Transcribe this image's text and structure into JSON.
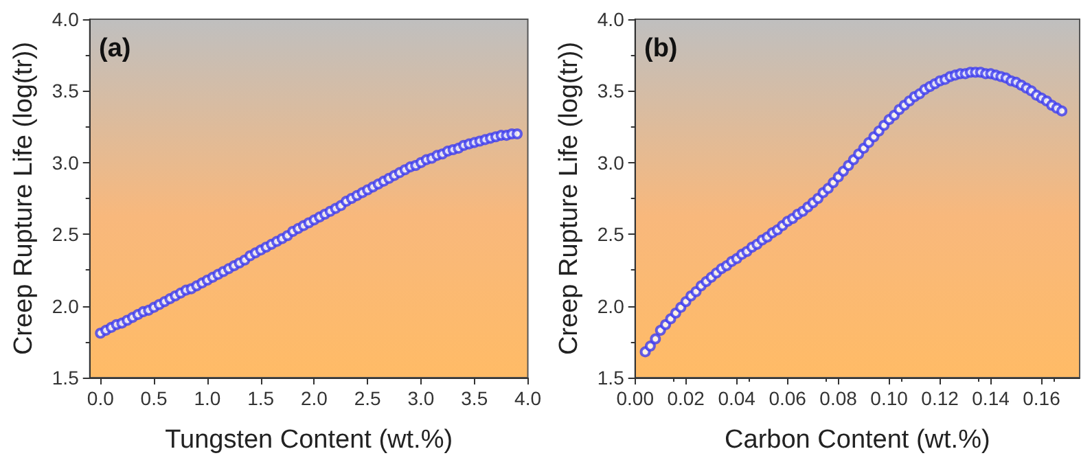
{
  "chart_data": [
    {
      "type": "scatter",
      "annotations": [
        "(a)"
      ],
      "xlabel": "Tungsten Content (wt.%)",
      "ylabel": "Creep Rupture Life (log(tr))",
      "marker": "circle",
      "grid": false,
      "xlim": [
        -0.1,
        4.0
      ],
      "xticks": [
        {
          "value": 0,
          "label": "0.0"
        },
        0.5,
        {
          "value": 1,
          "label": "1.0"
        },
        1.5,
        {
          "value": 2,
          "label": "2.0"
        },
        2.5,
        {
          "value": 3,
          "label": "3.0"
        },
        3.5,
        {
          "value": 4,
          "label": "4.0"
        }
      ],
      "ylim": [
        1.5,
        4.0
      ],
      "yticks": [
        1.5,
        {
          "value": 2,
          "label": "2.0"
        },
        2.5,
        {
          "value": 3,
          "label": "3.0"
        },
        3.5,
        {
          "value": 4,
          "label": "4.0"
        }
      ],
      "x": [
        0,
        0.05,
        0.1,
        0.15,
        0.2,
        0.25,
        0.3,
        0.35,
        0.4,
        0.45,
        0.5,
        0.55,
        0.6,
        0.65,
        0.7,
        0.75,
        0.8,
        0.85,
        0.9,
        0.95,
        1.0,
        1.05,
        1.1,
        1.15,
        1.2,
        1.25,
        1.3,
        1.35,
        1.4,
        1.45,
        1.5,
        1.55,
        1.6,
        1.65,
        1.7,
        1.75,
        1.8,
        1.85,
        1.9,
        1.95,
        2.0,
        2.05,
        2.1,
        2.15,
        2.2,
        2.25,
        2.3,
        2.35,
        2.4,
        2.45,
        2.5,
        2.55,
        2.6,
        2.65,
        2.7,
        2.75,
        2.8,
        2.85,
        2.9,
        2.95,
        3.0,
        3.05,
        3.1,
        3.15,
        3.2,
        3.25,
        3.3,
        3.35,
        3.4,
        3.45,
        3.5,
        3.55,
        3.6,
        3.65,
        3.7,
        3.75,
        3.8,
        3.85,
        3.9
      ],
      "series": [
        {
          "color": "#3c3cf0",
          "values": [
            1.81,
            1.83,
            1.85,
            1.87,
            1.88,
            1.9,
            1.92,
            1.94,
            1.96,
            1.97,
            1.99,
            2.01,
            2.03,
            2.05,
            2.07,
            2.09,
            2.11,
            2.12,
            2.14,
            2.16,
            2.18,
            2.2,
            2.22,
            2.24,
            2.26,
            2.28,
            2.3,
            2.32,
            2.35,
            2.37,
            2.39,
            2.41,
            2.43,
            2.45,
            2.47,
            2.49,
            2.52,
            2.54,
            2.56,
            2.58,
            2.6,
            2.62,
            2.64,
            2.66,
            2.68,
            2.7,
            2.73,
            2.75,
            2.77,
            2.79,
            2.81,
            2.83,
            2.85,
            2.87,
            2.89,
            2.91,
            2.93,
            2.95,
            2.97,
            2.98,
            3.0,
            3.02,
            3.03,
            3.05,
            3.06,
            3.08,
            3.09,
            3.1,
            3.12,
            3.13,
            3.14,
            3.15,
            3.16,
            3.17,
            3.18,
            3.19,
            3.19,
            3.2,
            3.2
          ]
        }
      ]
    },
    {
      "type": "scatter",
      "annotations": [
        "(b)"
      ],
      "xlabel": "Carbon Content (wt.%)",
      "ylabel": "Creep Rupture Life (log(tr))",
      "marker": "circle",
      "grid": false,
      "xlim": [
        0,
        0.175
      ],
      "xticks": [
        {
          "value": 0,
          "label": "0.00"
        },
        {
          "value": 0.02,
          "label": "0.02"
        },
        {
          "value": 0.04,
          "label": "0.04"
        },
        {
          "value": 0.06,
          "label": "0.06"
        },
        {
          "value": 0.08,
          "label": "0.08"
        },
        {
          "value": 0.1,
          "label": "0.10"
        },
        {
          "value": 0.12,
          "label": "0.12"
        },
        {
          "value": 0.14,
          "label": "0.14"
        },
        {
          "value": 0.16,
          "label": "0.16"
        }
      ],
      "ylim": [
        1.5,
        4.0
      ],
      "yticks": [
        1.5,
        {
          "value": 2,
          "label": "2.0"
        },
        2.5,
        {
          "value": 3,
          "label": "3.0"
        },
        3.5,
        {
          "value": 4,
          "label": "4.0"
        }
      ],
      "x": [
        0.004,
        0.006,
        0.008,
        0.01,
        0.012,
        0.014,
        0.016,
        0.018,
        0.02,
        0.022,
        0.024,
        0.026,
        0.028,
        0.03,
        0.032,
        0.034,
        0.036,
        0.038,
        0.04,
        0.042,
        0.044,
        0.046,
        0.048,
        0.05,
        0.052,
        0.054,
        0.056,
        0.058,
        0.06,
        0.062,
        0.064,
        0.066,
        0.068,
        0.07,
        0.072,
        0.074,
        0.076,
        0.078,
        0.08,
        0.082,
        0.084,
        0.086,
        0.088,
        0.09,
        0.092,
        0.094,
        0.096,
        0.098,
        0.1,
        0.102,
        0.104,
        0.106,
        0.108,
        0.11,
        0.112,
        0.114,
        0.116,
        0.118,
        0.12,
        0.122,
        0.124,
        0.126,
        0.128,
        0.13,
        0.132,
        0.134,
        0.136,
        0.138,
        0.14,
        0.142,
        0.144,
        0.146,
        0.148,
        0.15,
        0.152,
        0.154,
        0.156,
        0.158,
        0.16,
        0.162,
        0.164,
        0.166,
        0.168
      ],
      "series": [
        {
          "color": "#3c3cf0",
          "values": [
            1.68,
            1.72,
            1.77,
            1.83,
            1.87,
            1.91,
            1.95,
            1.99,
            2.03,
            2.07,
            2.1,
            2.14,
            2.17,
            2.2,
            2.23,
            2.26,
            2.28,
            2.31,
            2.33,
            2.36,
            2.38,
            2.41,
            2.43,
            2.46,
            2.48,
            2.51,
            2.53,
            2.56,
            2.59,
            2.61,
            2.64,
            2.66,
            2.69,
            2.72,
            2.75,
            2.79,
            2.82,
            2.86,
            2.9,
            2.94,
            2.98,
            3.02,
            3.06,
            3.1,
            3.14,
            3.18,
            3.22,
            3.26,
            3.3,
            3.33,
            3.37,
            3.4,
            3.43,
            3.46,
            3.48,
            3.51,
            3.53,
            3.55,
            3.57,
            3.58,
            3.6,
            3.61,
            3.62,
            3.62,
            3.63,
            3.63,
            3.63,
            3.62,
            3.62,
            3.61,
            3.6,
            3.59,
            3.57,
            3.56,
            3.54,
            3.52,
            3.5,
            3.47,
            3.45,
            3.43,
            3.4,
            3.38,
            3.36
          ]
        }
      ]
    }
  ]
}
